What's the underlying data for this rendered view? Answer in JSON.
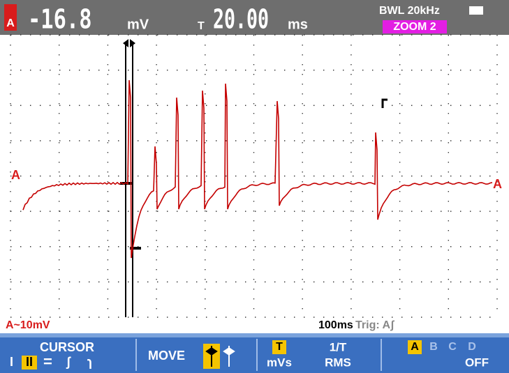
{
  "header": {
    "channel": "A",
    "reading": "-16.8",
    "reading_unit": "mV",
    "time_icon": "T",
    "time": "20.00",
    "time_unit": "ms",
    "bandwidth": "BWL 20kHz",
    "zoom": "ZOOM 2"
  },
  "markers": {
    "left": "A",
    "right": "A"
  },
  "status": {
    "scale": "A~10mV",
    "timebase": "100ms",
    "trigger": "Trig: Aʃ"
  },
  "softkeys": [
    {
      "title": "CURSOR",
      "options": [
        "I",
        "II",
        "=",
        "ʃ",
        "ɿ"
      ]
    },
    {
      "title": "MOVE"
    },
    {
      "title": "T",
      "sub": "mVs",
      "title2": "1/T",
      "sub2": "RMS"
    },
    {
      "options": [
        "A",
        "B",
        "C",
        "D"
      ],
      "sub": "OFF"
    }
  ]
}
